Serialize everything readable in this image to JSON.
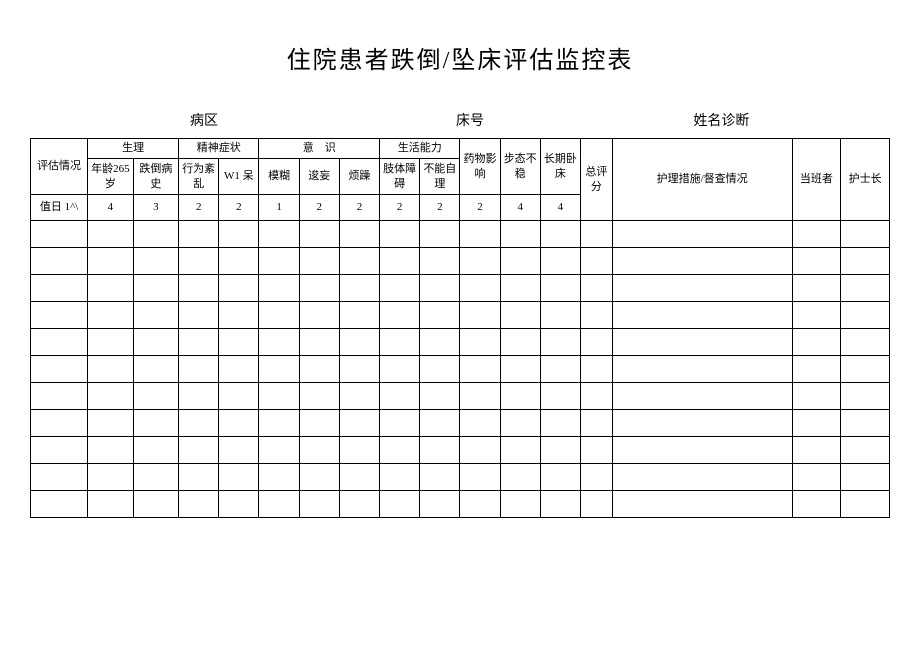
{
  "title": "住院患者跌倒/坠床评估监控表",
  "info": {
    "ward_label": "病区",
    "bed_label": "床号",
    "name_diag_label": "姓名诊断"
  },
  "headers": {
    "col0": "评估情况",
    "group1": "生理",
    "group2": "精神症状",
    "group3": "意　识",
    "group4": "生活能力",
    "col10": "药物影响",
    "col11": "步态不稳",
    "col12": "长期卧床",
    "col13": "总评分",
    "col14": "护理措施/督查情况",
    "col15": "当班者",
    "col16": "护士长",
    "sub1": "年龄265岁",
    "sub2": "跌倒病史",
    "sub3": "行为紊乱",
    "sub4": "W1 呆",
    "sub5": "模糊",
    "sub6": "逡妄",
    "sub7": "烦躁",
    "sub8": "肢体障碍",
    "sub9": "不能自理",
    "row3_col0": "值日 1^\\"
  },
  "scores": [
    "4",
    "3",
    "2",
    "2",
    "1",
    "2",
    "2",
    "2",
    "2",
    "2",
    "4",
    "4"
  ],
  "empty_rows": 11,
  "style": {
    "background_color": "#ffffff",
    "border_color": "#000000",
    "title_fontsize": 24,
    "label_fontsize": 14,
    "cell_fontsize": 11
  }
}
